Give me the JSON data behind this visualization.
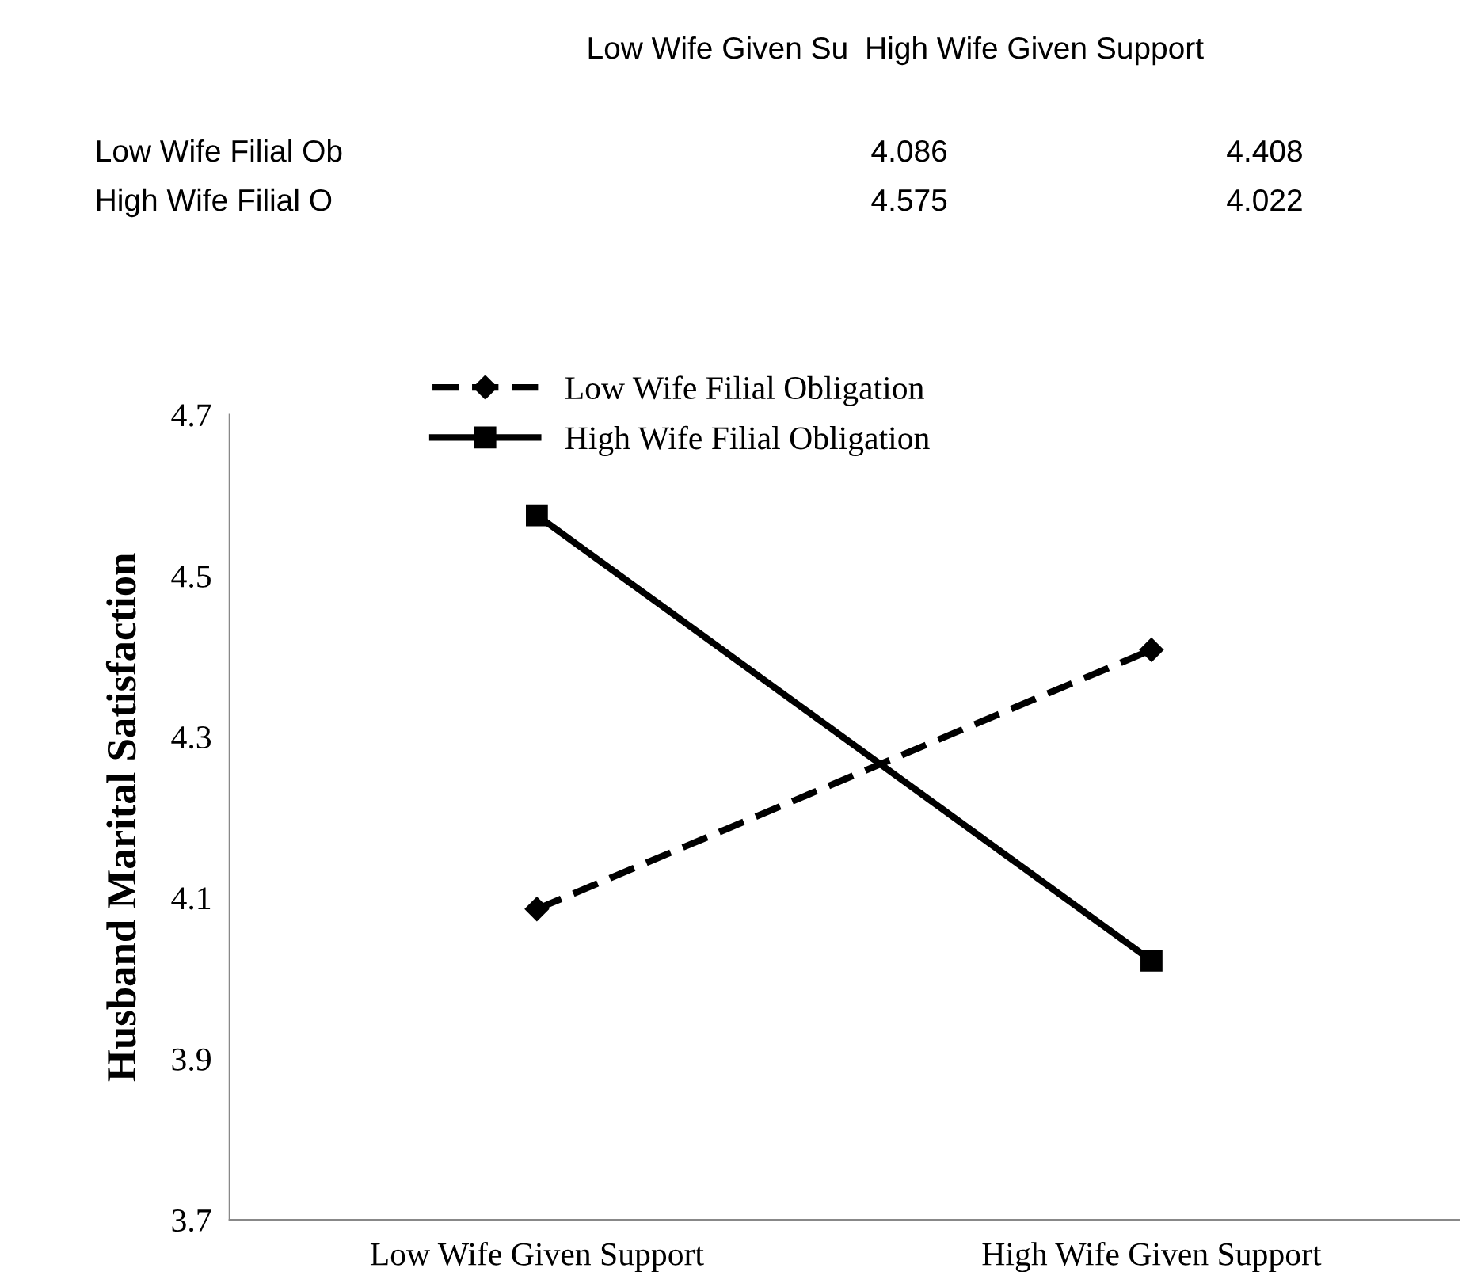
{
  "chart_data": {
    "type": "line",
    "ylabel": "Husband Marital Satisfaction",
    "categories": [
      "Low Wife Given Support",
      "High Wife Given Support"
    ],
    "series": [
      {
        "name": "Low Wife Filial Obligation",
        "color": "#000000",
        "values": [
          4.086,
          4.408
        ],
        "marker": "diamond",
        "line_style": "dashed"
      },
      {
        "name": "High Wife Filial Obligation",
        "color": "#000000",
        "values": [
          4.575,
          4.022
        ],
        "marker": "square",
        "line_style": "solid"
      }
    ],
    "annotations": [
      "Low Wife Given Su",
      "High Wife Given Support",
      "Low Wife Filial Ob",
      "4.086",
      "4.408",
      "High Wife Filial O",
      "4.575",
      "4.022"
    ],
    "ylim": [
      3.7,
      4.7
    ],
    "yticks": [
      3.7,
      3.9,
      4.1,
      4.3,
      4.5,
      4.7
    ],
    "grid": false,
    "legend": "top"
  }
}
